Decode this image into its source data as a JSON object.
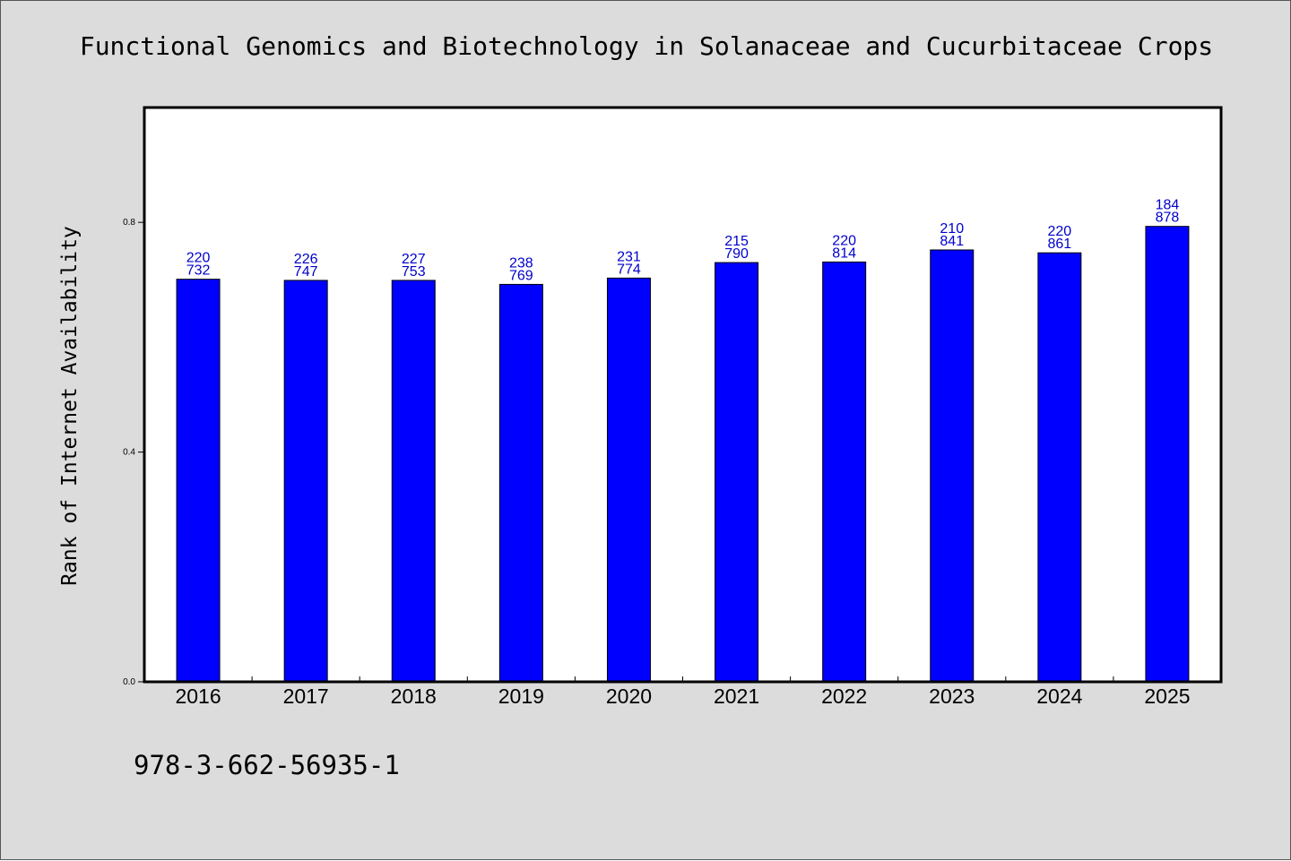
{
  "title": "Functional Genomics and Biotechnology in Solanaceae and Cucurbitaceae Crops",
  "footer_text": "978-3-662-56935-1",
  "colors": {
    "background": "#dcdcdc",
    "plot_background": "#ffffff",
    "bar": "#0000ff",
    "bar_edge": "#000000",
    "data_label": "#0000cc"
  },
  "chart_data": {
    "type": "bar",
    "title": "Functional Genomics and Biotechnology in Solanaceae and Cucurbitaceae Crops",
    "xlabel": "",
    "ylabel": "Rank of Internet Availability",
    "categories": [
      "2016",
      "2017",
      "2018",
      "2019",
      "2020",
      "2021",
      "2022",
      "2023",
      "2024",
      "2025"
    ],
    "values": [
      0.701,
      0.699,
      0.699,
      0.692,
      0.703,
      0.73,
      0.731,
      0.752,
      0.747,
      0.793
    ],
    "data_labels": [
      [
        "220",
        "732"
      ],
      [
        "226",
        "747"
      ],
      [
        "227",
        "753"
      ],
      [
        "238",
        "769"
      ],
      [
        "231",
        "774"
      ],
      [
        "215",
        "790"
      ],
      [
        "220",
        "814"
      ],
      [
        "210",
        "841"
      ],
      [
        "220",
        "861"
      ],
      [
        "184",
        "878"
      ]
    ],
    "yticks": [
      "0.0",
      "0.4",
      "0.8"
    ],
    "ylim": [
      0,
      1.0
    ],
    "grid": false,
    "legend": "none"
  }
}
